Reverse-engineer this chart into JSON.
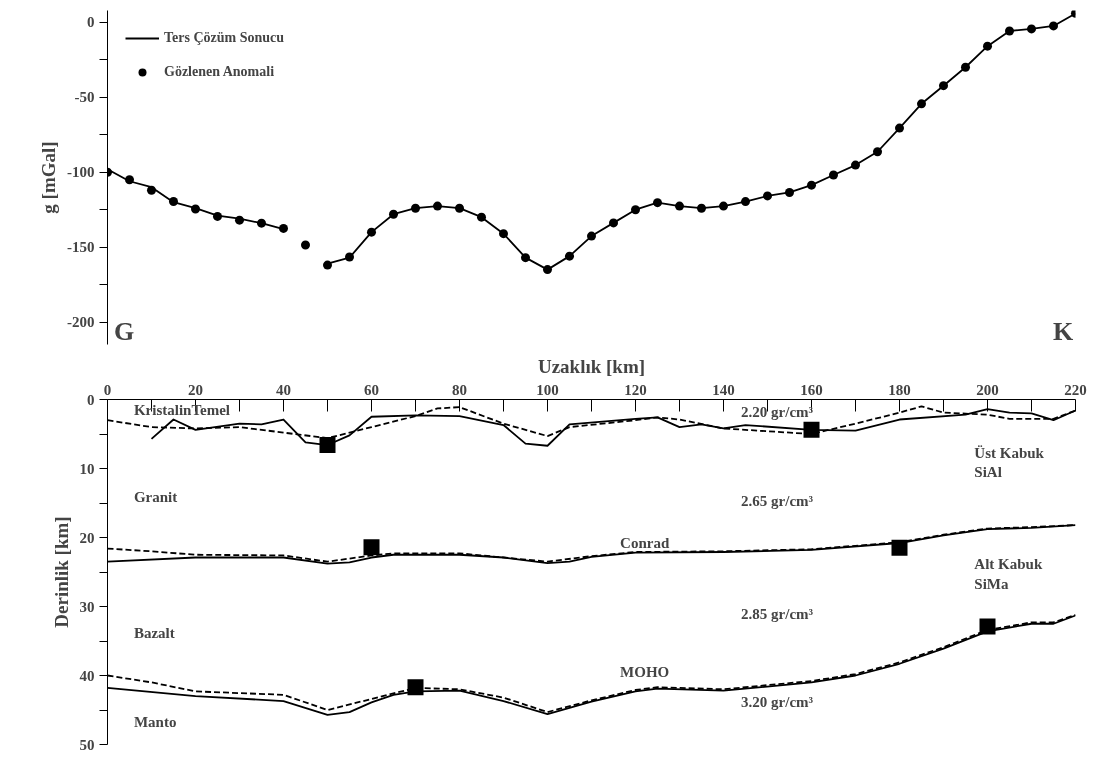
{
  "chart_data": [
    {
      "type": "line",
      "ylabel": "g [mGal]",
      "xlim": [
        0,
        220
      ],
      "ylim": [
        -215,
        8
      ],
      "tick_labels": "y",
      "legend": "top left",
      "yticks": [
        0,
        {
          "value": -25,
          "label": null
        },
        -50,
        {
          "value": -75,
          "label": null
        },
        -100,
        {
          "value": -125,
          "label": null
        },
        -150,
        {
          "value": -175,
          "label": null
        },
        -200
      ],
      "x": [
        0,
        5,
        10,
        15,
        20,
        25,
        30,
        35,
        40,
        45,
        50,
        55,
        60,
        65,
        70,
        75,
        80,
        85,
        90,
        95,
        100,
        105,
        110,
        115,
        120,
        125,
        130,
        135,
        140,
        145,
        150,
        155,
        160,
        165,
        170,
        175,
        180,
        185,
        190,
        195,
        200,
        205,
        210,
        215,
        220
      ],
      "series": [
        {
          "name": "Ters Çözüm Sonucu",
          "marker": "none",
          "line_style": "solid",
          "color": "#000000",
          "values": [
            -98,
            -106,
            -110,
            -120,
            -124,
            -129,
            -131,
            -134,
            -138,
            null,
            -161,
            -157,
            -140,
            -128,
            -124,
            -122.6,
            -124,
            -130,
            -141,
            -157,
            -165,
            -156,
            -142.6,
            -133.8,
            -125,
            -120.3,
            -122.6,
            -124,
            -122.6,
            -119.6,
            -115.8,
            -113.5,
            -108.6,
            -101.8,
            -95.2,
            -86.3,
            -70.5,
            -54.3,
            -42.2,
            -29.9,
            -15.8,
            -5.7,
            -4.3,
            -2.3,
            6
          ]
        },
        {
          "name": "Gözlenen Anomali",
          "type": "scatter",
          "marker": "circle",
          "color": "#000000",
          "values": [
            -100,
            -105,
            -112,
            -119.5,
            -124.5,
            -129.5,
            -132,
            -134,
            -137.5,
            -148.6,
            -162,
            -156.6,
            -140,
            -128,
            -124,
            -122.6,
            -124,
            -130,
            -141,
            -157,
            -165,
            -156,
            -142.6,
            -133.8,
            -125,
            -120.3,
            -122.6,
            -124,
            -122.6,
            -119.6,
            -115.8,
            -113.5,
            -108.6,
            -101.8,
            -95.2,
            -86.3,
            -70.5,
            -54.3,
            -42.2,
            -29.9,
            -15.8,
            -5.7,
            -4.3,
            -2.3,
            6.2
          ]
        }
      ],
      "annotations": [
        "G",
        "K"
      ]
    },
    {
      "type": "line",
      "xlabel": "Uzaklık [km]",
      "ylabel": "Derinlik [km]",
      "xlim": [
        0,
        220
      ],
      "ylim": [
        50,
        0
      ],
      "xticks": [
        0,
        {
          "value": 10,
          "label": null
        },
        20,
        {
          "value": 30,
          "label": null
        },
        40,
        {
          "value": 50,
          "label": null
        },
        60,
        {
          "value": 70,
          "label": null
        },
        80,
        {
          "value": 90,
          "label": null
        },
        100,
        {
          "value": 110,
          "label": null
        },
        120,
        {
          "value": 130,
          "label": null
        },
        140,
        {
          "value": 150,
          "label": null
        },
        160,
        {
          "value": 170,
          "label": null
        },
        180,
        {
          "value": 190,
          "label": null
        },
        200,
        {
          "value": 210,
          "label": null
        },
        220
      ],
      "yticks": [
        0,
        {
          "value": 5,
          "label": null
        },
        10,
        {
          "value": 15,
          "label": null
        },
        20,
        {
          "value": 25,
          "label": null
        },
        30,
        {
          "value": 35,
          "label": null
        },
        40,
        {
          "value": 45,
          "label": null
        },
        50
      ],
      "series": [
        {
          "line_style": "solid",
          "color": "#000000",
          "x": [
            10,
            15,
            20,
            30,
            35,
            40,
            45,
            50,
            55,
            60,
            70,
            80,
            90,
            95,
            100,
            105,
            120,
            125,
            130,
            135,
            140,
            145,
            160,
            170,
            180,
            195,
            200,
            205,
            210,
            215,
            220
          ],
          "values": [
            5.7,
            2.9,
            4.4,
            3.5,
            3.6,
            2.9,
            6.2,
            6.6,
            5.2,
            2.5,
            2.3,
            2.4,
            3.7,
            6.4,
            6.7,
            3.6,
            2.8,
            2.6,
            4.0,
            3.6,
            4.2,
            3.7,
            4.4,
            4.5,
            2.9,
            2.2,
            1.4,
            1.9,
            2.0,
            3.0,
            1.6
          ]
        },
        {
          "line_style": "dashed",
          "color": "#000000",
          "x": [
            0,
            10,
            20,
            30,
            40,
            50,
            60,
            70,
            75,
            80,
            90,
            100,
            105,
            120,
            125,
            130,
            140,
            150,
            160,
            170,
            180,
            185,
            190,
            200,
            205,
            215,
            220
          ],
          "values": [
            3.0,
            4.0,
            4.2,
            4.0,
            4.8,
            5.6,
            4.0,
            2.4,
            1.3,
            1.1,
            3.5,
            5.3,
            4.0,
            3.0,
            2.6,
            2.9,
            4.2,
            4.6,
            5.0,
            3.5,
            1.9,
            1.0,
            1.9,
            2.2,
            2.8,
            2.8,
            1.6
          ]
        },
        {
          "line_style": "solid",
          "color": "#000000",
          "x": [
            0,
            20,
            40,
            50,
            55,
            60,
            65,
            80,
            90,
            100,
            105,
            110,
            120,
            140,
            160,
            180,
            190,
            200,
            210,
            220
          ],
          "values": [
            23.5,
            22.9,
            22.9,
            23.8,
            23.6,
            22.9,
            22.5,
            22.5,
            22.9,
            23.7,
            23.5,
            22.8,
            22.2,
            22.1,
            21.8,
            20.8,
            19.7,
            18.8,
            18.6,
            18.2
          ]
        },
        {
          "line_style": "dashed",
          "color": "#000000",
          "x": [
            0,
            10,
            20,
            40,
            50,
            60,
            65,
            80,
            100,
            110,
            120,
            140,
            160,
            180,
            190,
            200,
            210,
            220
          ],
          "values": [
            21.6,
            22.0,
            22.5,
            22.6,
            23.5,
            22.6,
            22.3,
            22.3,
            23.5,
            22.7,
            22.1,
            22.0,
            21.7,
            20.7,
            19.6,
            18.7,
            18.5,
            18.2
          ]
        },
        {
          "line_style": "solid",
          "color": "#000000",
          "x": [
            0,
            20,
            40,
            50,
            55,
            60,
            65,
            70,
            80,
            90,
            100,
            110,
            120,
            125,
            140,
            160,
            170,
            180,
            190,
            200,
            210,
            215,
            220
          ],
          "values": [
            41.8,
            43.0,
            43.7,
            45.7,
            45.3,
            43.9,
            42.8,
            42.3,
            42.2,
            43.7,
            45.6,
            43.8,
            42.3,
            41.9,
            42.2,
            41.0,
            40.0,
            38.3,
            36.1,
            33.6,
            32.5,
            32.5,
            31.3
          ]
        },
        {
          "line_style": "dashed",
          "color": "#000000",
          "x": [
            0,
            10,
            20,
            40,
            50,
            60,
            70,
            80,
            90,
            100,
            110,
            120,
            125,
            140,
            160,
            170,
            180,
            190,
            200,
            210,
            215,
            220
          ],
          "values": [
            40.0,
            41.0,
            42.3,
            42.8,
            45.0,
            43.4,
            41.8,
            42.0,
            43.2,
            45.3,
            43.6,
            42.1,
            41.7,
            42.0,
            40.8,
            39.8,
            38.1,
            35.9,
            33.4,
            32.3,
            32.3,
            31.2
          ]
        },
        {
          "type": "scatter",
          "marker": "square",
          "color": "#000000",
          "x": [
            50,
            160,
            60,
            180,
            70,
            200
          ],
          "values": [
            6.6,
            4.4,
            21.4,
            21.5,
            41.7,
            32.9
          ]
        }
      ],
      "annotations": [
        "KristalinTemel",
        "Granit",
        "Bazalt",
        "Manto",
        "2.20  gr/cm³",
        "2.65  gr/cm³",
        "2.85  gr/cm³",
        "3.20 gr/cm³",
        "Conrad",
        "MOHO",
        "Üst Kabuk\nSiAl",
        "Alt Kabuk\nSiMa"
      ]
    }
  ]
}
